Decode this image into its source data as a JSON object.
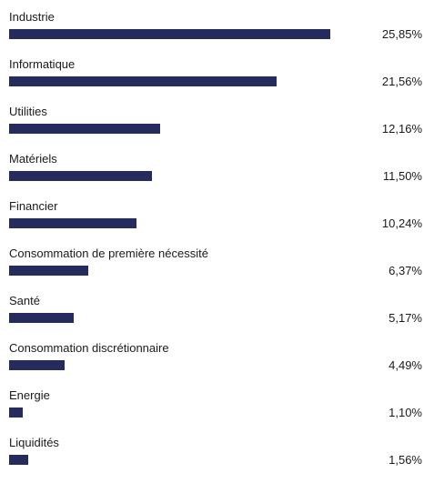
{
  "chart_data": {
    "type": "bar",
    "orientation": "horizontal",
    "categories": [
      "Industrie",
      "Informatique",
      "Utilities",
      "Matériels",
      "Financier",
      "Consommation de première nécessité",
      "Santé",
      "Consommation discrétionnaire",
      "Energie",
      "Liquidités"
    ],
    "values": [
      25.85,
      21.56,
      12.16,
      11.5,
      10.24,
      6.37,
      5.17,
      4.49,
      1.1,
      1.56
    ],
    "value_labels": [
      "25,85%",
      "21,56%",
      "12,16%",
      "11,50%",
      "10,24%",
      "6,37%",
      "5,17%",
      "4,49%",
      "1,10%",
      "1,56%"
    ],
    "bar_color": "#262b5e",
    "xlim": [
      0,
      25.85
    ],
    "grid": false
  }
}
